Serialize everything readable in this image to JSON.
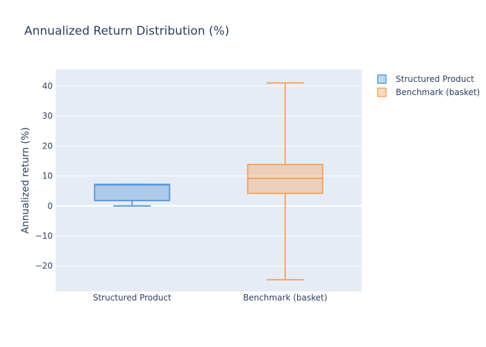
{
  "chart_data": {
    "type": "box",
    "title": "Annualized Return Distribution (%)",
    "xlabel": "",
    "ylabel": "Annualized return (%)",
    "ylim": [
      -28.5,
      45.5
    ],
    "yticks": [
      -20,
      -10,
      0,
      10,
      20,
      30,
      40
    ],
    "ytick_labels": [
      "−20",
      "−10",
      "0",
      "10",
      "20",
      "30",
      "40"
    ],
    "categories": [
      "Structured Product",
      "Benchmark (basket)"
    ],
    "grid": true,
    "legend_position": "top-right",
    "series": [
      {
        "name": "Structured Product",
        "color": "#5b9bd5",
        "min": 0,
        "q1": 1.8,
        "median": 7.0,
        "q3": 7.2,
        "max": 7.2
      },
      {
        "name": "Benchmark (basket)",
        "color": "#f4a460",
        "min": -24.6,
        "q1": 4.2,
        "median": 9.2,
        "q3": 13.8,
        "max": 41.0
      }
    ]
  }
}
